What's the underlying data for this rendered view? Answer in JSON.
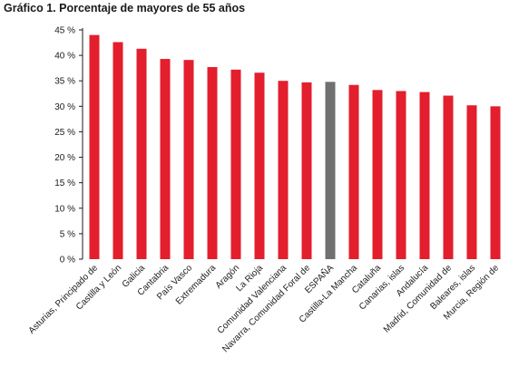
{
  "chart_data": {
    "type": "bar",
    "title": "Gráfico 1. Porcentaje de mayores de 55 años",
    "categories": [
      "Asturias, Principado de",
      "Castilla y León",
      "Galicia",
      "Cantabria",
      "País Vasco",
      "Extremadura",
      "Aragón",
      "La Rioja",
      "Comunidad Valenciana",
      "Navarra, Comunidad Foral de",
      "ESPAÑA",
      "Castilla-La Mancha",
      "Cataluña",
      "Canarias, islas",
      "Andalucía",
      "Madrid, Comunidad de",
      "Baleares, islas",
      "Murcia, Región de"
    ],
    "values": [
      44.0,
      42.6,
      41.3,
      39.3,
      39.1,
      37.7,
      37.2,
      36.6,
      35.0,
      34.7,
      34.8,
      34.2,
      33.2,
      33.0,
      32.8,
      32.1,
      30.2,
      30.0
    ],
    "highlight_category": "ESPAÑA",
    "colors": {
      "bar": "#e31e2d",
      "highlight": "#707070",
      "axis": "#1a1a1a"
    },
    "y_ticks": [
      "0 %",
      "5 %",
      "10 %",
      "15 %",
      "20 %",
      "25 %",
      "30 %",
      "35 %",
      "40 %",
      "45 %"
    ],
    "ylim": [
      0,
      45
    ],
    "xlabel": "",
    "ylabel": "",
    "grid": false
  }
}
